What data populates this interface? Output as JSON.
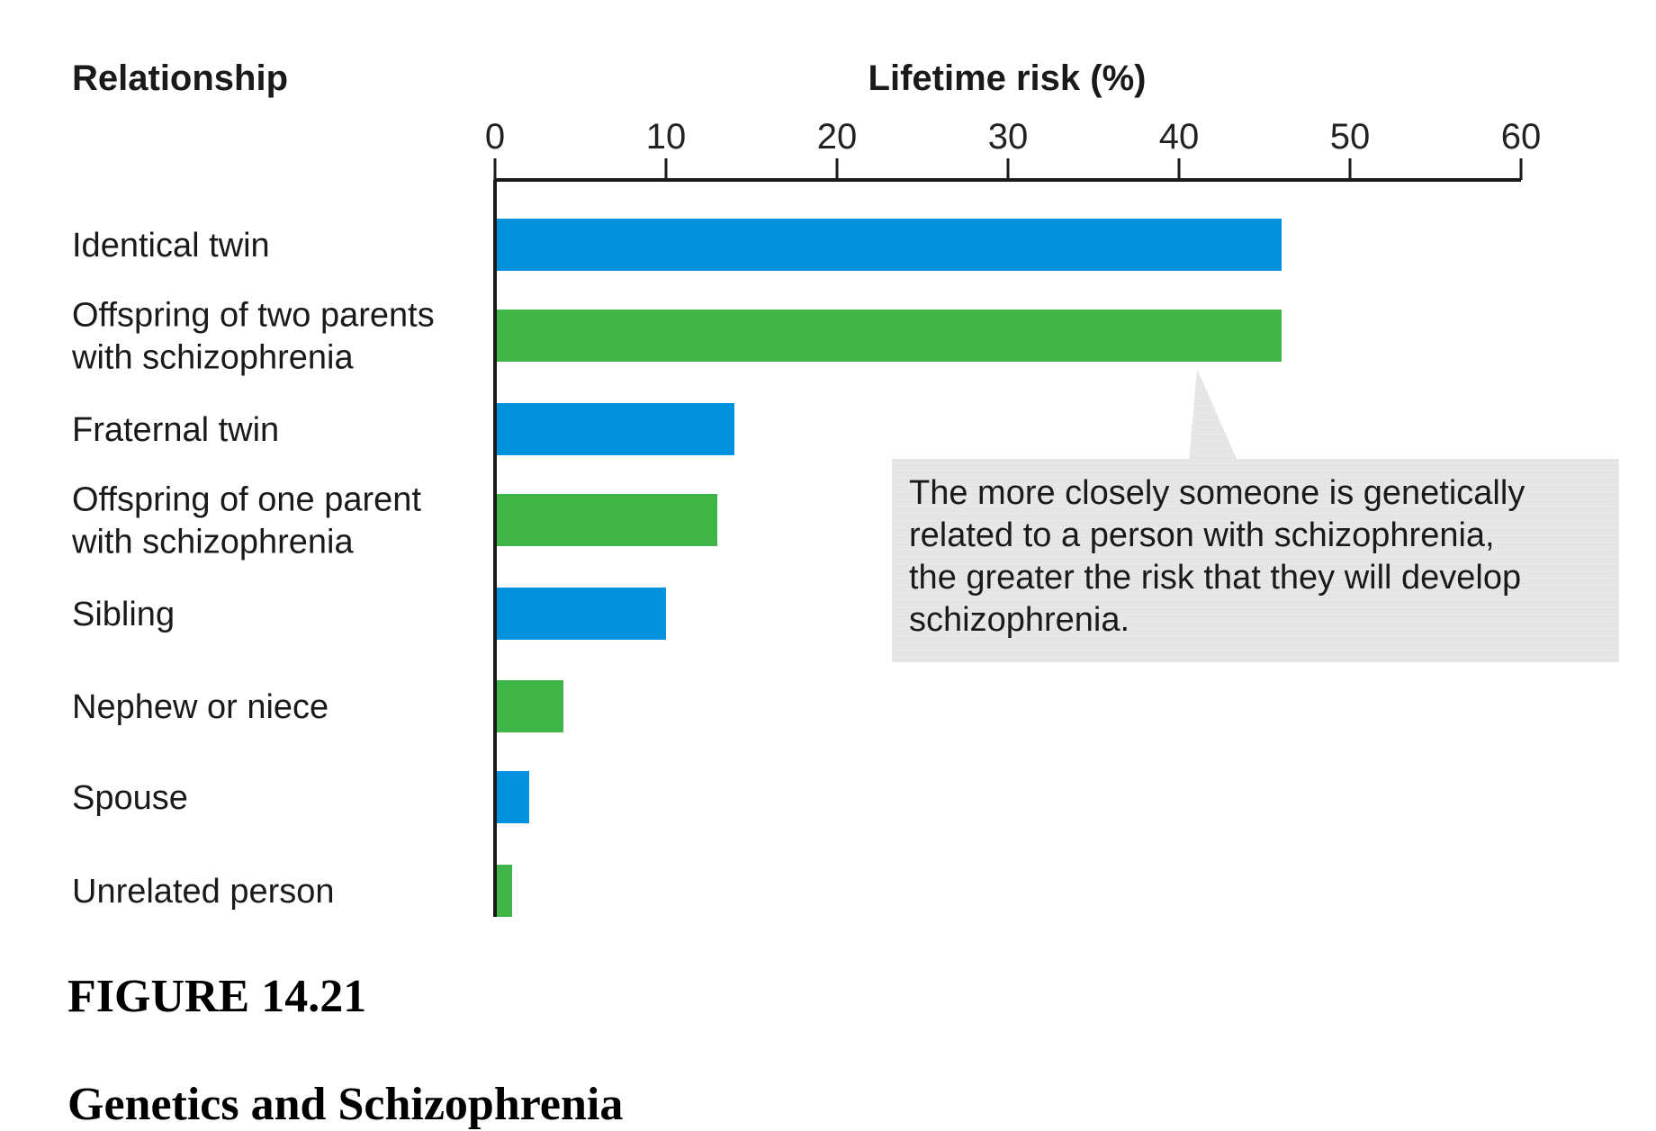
{
  "chart_data": {
    "type": "bar",
    "orientation": "horizontal",
    "category_header": "Relationship",
    "xlabel": "Lifetime risk (%)",
    "xlim": [
      0,
      60
    ],
    "xticks": [
      0,
      10,
      20,
      30,
      40,
      50,
      60
    ],
    "categories": [
      [
        "Identical twin"
      ],
      [
        "Offspring of two parents",
        "with schizophrenia"
      ],
      [
        "Fraternal twin"
      ],
      [
        "Offspring of one parent",
        "with schizophrenia"
      ],
      [
        "Sibling"
      ],
      [
        "Nephew or niece"
      ],
      [
        "Spouse"
      ],
      [
        "Unrelated person"
      ]
    ],
    "values": [
      46,
      46,
      14,
      13,
      10,
      4,
      2,
      1
    ],
    "bar_colors": [
      "#0392dd",
      "#3fb548",
      "#0392dd",
      "#3fb548",
      "#0392dd",
      "#3fb548",
      "#0392dd",
      "#3fb548"
    ],
    "annotation": [
      "The more closely someone is genetically",
      "related to a person with schizophrenia,",
      "the greater the risk that they will develop",
      "schizophrenia."
    ]
  },
  "figure": {
    "number": "FIGURE 14.21",
    "title": "Genetics and Schizophrenia"
  }
}
